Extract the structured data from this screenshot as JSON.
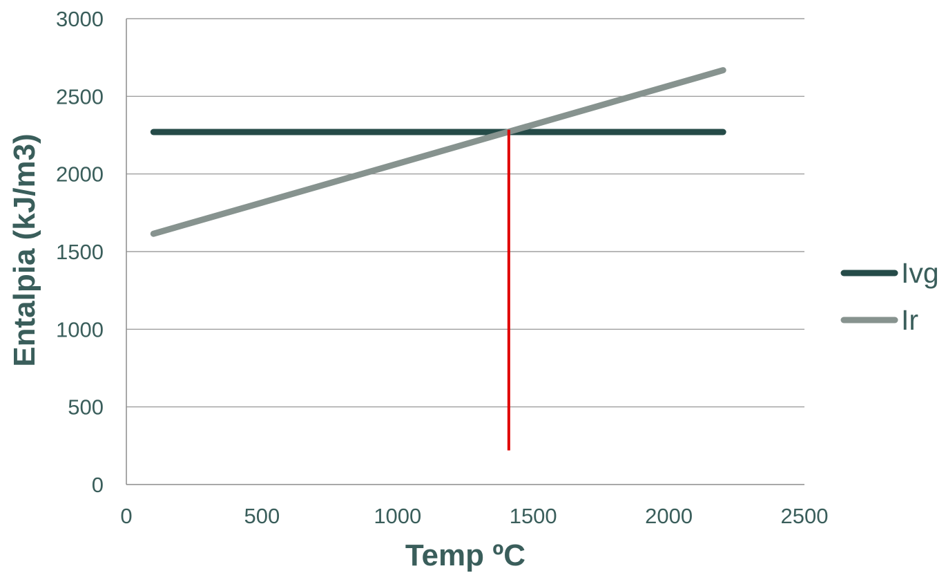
{
  "chart_data": {
    "type": "line",
    "title": "",
    "xlabel": "Temp ºC",
    "ylabel": "Entalpia (kJ/m3)",
    "xlim": [
      0,
      2500
    ],
    "ylim": [
      0,
      3000
    ],
    "xticks": [
      "0",
      "500",
      "1000",
      "1500",
      "2000",
      "2500"
    ],
    "yticks": [
      "0",
      "500",
      "1000",
      "1500",
      "2000",
      "2500",
      "3000"
    ],
    "grid": "horizontal",
    "legend_position": "right",
    "series": [
      {
        "name": "Ivg",
        "color": "#254b48",
        "points": [
          [
            100,
            2270
          ],
          [
            2200,
            2270
          ]
        ]
      },
      {
        "name": "Ir",
        "color": "#87938f",
        "points": [
          [
            100,
            1615
          ],
          [
            2200,
            2668
          ]
        ]
      }
    ],
    "annotations": [
      {
        "type": "vertical-line",
        "color": "#e00000",
        "x": 1410,
        "y_from": 220,
        "y_to": 2285
      }
    ],
    "text_color": "#3a5e5b",
    "axis_color": "#8c8c8c",
    "grid_color": "#8c8c8c"
  }
}
